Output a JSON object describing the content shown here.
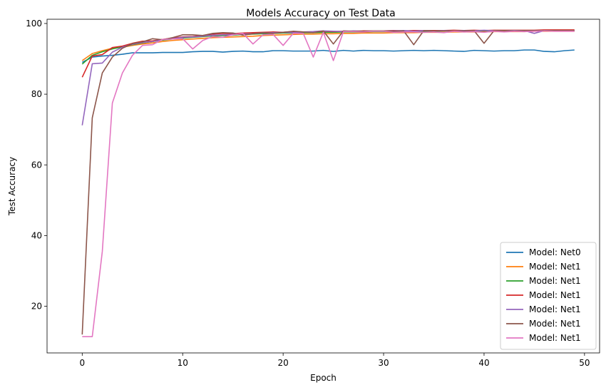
{
  "chart_data": {
    "type": "line",
    "title": "Models Accuracy on Test Data",
    "xlabel": "Epoch",
    "ylabel": "Test Accuracy",
    "xlim": [
      -3.5,
      51.5
    ],
    "ylim": [
      6.8,
      101.2
    ],
    "xticks": [
      0,
      10,
      20,
      30,
      40,
      50
    ],
    "yticks": [
      20,
      40,
      60,
      80,
      100
    ],
    "grid": false,
    "legend_position": "lower-right",
    "x": [
      0,
      1,
      2,
      3,
      4,
      5,
      6,
      7,
      8,
      9,
      10,
      11,
      12,
      13,
      14,
      15,
      16,
      17,
      18,
      19,
      20,
      21,
      22,
      23,
      24,
      25,
      26,
      27,
      28,
      29,
      30,
      31,
      32,
      33,
      34,
      35,
      36,
      37,
      38,
      39,
      40,
      41,
      42,
      43,
      44,
      45,
      46,
      47,
      48,
      49
    ],
    "series": [
      {
        "name": "Model: Net0",
        "color": "#1f77b4",
        "values": [
          89.0,
          90.5,
          90.8,
          91.0,
          91.3,
          91.7,
          91.7,
          91.7,
          91.8,
          91.8,
          91.8,
          92.0,
          92.1,
          92.1,
          91.9,
          92.1,
          92.2,
          92.0,
          92.0,
          92.3,
          92.3,
          92.2,
          92.2,
          92.2,
          92.4,
          92.1,
          92.4,
          92.2,
          92.4,
          92.3,
          92.3,
          92.2,
          92.3,
          92.4,
          92.3,
          92.4,
          92.3,
          92.2,
          92.1,
          92.4,
          92.3,
          92.2,
          92.3,
          92.3,
          92.5,
          92.5,
          92.1,
          92.0,
          92.3,
          92.5
        ]
      },
      {
        "name": "Model: Net1",
        "color": "#ff7f0e",
        "values": [
          89.5,
          91.5,
          92.3,
          93.0,
          93.3,
          93.8,
          94.2,
          94.5,
          94.9,
          95.2,
          95.4,
          95.6,
          95.8,
          96.0,
          96.1,
          96.2,
          96.3,
          96.4,
          96.6,
          96.7,
          96.8,
          96.9,
          97.0,
          97.0,
          97.1,
          97.1,
          97.2,
          97.2,
          97.3,
          97.3,
          97.3,
          97.4,
          97.4,
          97.4,
          97.5,
          97.5,
          97.5,
          97.6,
          97.6,
          97.6,
          97.6,
          97.7,
          97.7,
          97.7,
          97.7,
          97.8,
          97.8,
          97.8,
          97.8,
          97.8
        ]
      },
      {
        "name": "Model: Net1",
        "color": "#2ca02c",
        "values": [
          88.5,
          91.0,
          92.0,
          92.8,
          93.4,
          94.0,
          94.5,
          94.9,
          95.3,
          95.6,
          95.9,
          96.1,
          96.3,
          96.5,
          96.6,
          96.7,
          96.9,
          97.0,
          97.1,
          97.2,
          97.3,
          97.3,
          97.4,
          97.4,
          97.5,
          97.5,
          97.6,
          97.6,
          97.6,
          97.7,
          97.7,
          97.7,
          97.8,
          97.8,
          97.8,
          97.8,
          97.9,
          97.9,
          97.9,
          97.9,
          97.9,
          98.0,
          98.0,
          98.0,
          98.0,
          98.0,
          98.0,
          98.0,
          98.0,
          98.0
        ]
      },
      {
        "name": "Model: Net1",
        "color": "#d62728",
        "values": [
          84.8,
          90.8,
          91.2,
          93.2,
          93.6,
          94.4,
          95.0,
          95.1,
          95.5,
          95.9,
          96.2,
          96.3,
          96.6,
          97.0,
          97.2,
          97.1,
          97.3,
          97.4,
          97.5,
          97.6,
          97.5,
          97.7,
          97.6,
          97.6,
          97.8,
          97.7,
          97.8,
          97.8,
          97.9,
          97.9,
          97.9,
          98.0,
          97.9,
          98.0,
          98.0,
          98.0,
          98.0,
          98.1,
          98.0,
          98.1,
          98.0,
          98.1,
          98.1,
          98.1,
          98.1,
          98.1,
          98.2,
          98.2,
          98.2,
          98.2
        ]
      },
      {
        "name": "Model: Net1",
        "color": "#9467bd",
        "values": [
          71.2,
          88.6,
          88.8,
          91.9,
          93.3,
          94.1,
          94.6,
          94.9,
          95.4,
          95.7,
          96.1,
          96.2,
          96.4,
          96.7,
          96.8,
          96.9,
          97.0,
          97.1,
          97.3,
          97.4,
          97.5,
          97.4,
          97.6,
          97.7,
          97.9,
          97.8,
          97.7,
          97.9,
          97.8,
          97.9,
          97.9,
          97.9,
          98.0,
          97.8,
          98.0,
          97.9,
          98.0,
          97.9,
          98.0,
          97.9,
          98.1,
          97.9,
          98.0,
          98.0,
          98.0,
          97.2,
          98.0,
          98.0,
          98.0,
          98.0
        ]
      },
      {
        "name": "Model: Net1",
        "color": "#8c564b",
        "values": [
          12.0,
          73.3,
          86.0,
          90.5,
          93.0,
          94.3,
          94.8,
          95.7,
          95.4,
          96.0,
          96.8,
          96.8,
          96.6,
          97.2,
          97.4,
          97.3,
          96.7,
          97.1,
          97.4,
          97.2,
          97.5,
          97.8,
          97.6,
          97.4,
          97.9,
          94.2,
          97.9,
          97.8,
          97.8,
          97.9,
          97.9,
          97.8,
          97.9,
          94.0,
          98.0,
          97.9,
          97.9,
          97.9,
          97.9,
          98.0,
          94.4,
          98.0,
          98.0,
          97.9,
          98.0,
          98.0,
          98.0,
          98.0,
          98.0,
          98.0
        ]
      },
      {
        "name": "Model: Net1",
        "color": "#e377c2",
        "values": [
          11.4,
          11.4,
          35.5,
          77.5,
          86.0,
          91.0,
          93.8,
          94.0,
          95.5,
          95.6,
          95.7,
          92.8,
          95.2,
          96.3,
          96.1,
          96.8,
          97.2,
          94.2,
          96.8,
          96.9,
          93.8,
          97.2,
          97.2,
          90.5,
          97.5,
          89.5,
          97.7,
          97.7,
          97.6,
          97.8,
          97.8,
          97.5,
          97.6,
          97.6,
          97.5,
          97.6,
          97.4,
          97.8,
          97.6,
          97.7,
          97.5,
          97.8,
          97.6,
          97.8,
          97.7,
          97.8,
          97.9,
          97.8,
          97.8,
          97.8
        ]
      }
    ]
  }
}
